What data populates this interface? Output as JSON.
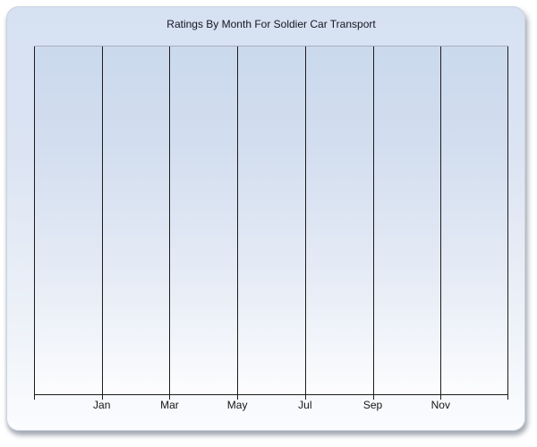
{
  "chart": {
    "title": "Ratings By Month For Soldier Car Transport",
    "x_labels": [
      "Jan",
      "Mar",
      "May",
      "Jul",
      "Sep",
      "Nov"
    ]
  },
  "colors": {
    "title_text": "#15151f",
    "axis_and_gridlines": "#1c1c1c",
    "x_label_text": "#141414",
    "plot_top_border": "#a8afbd",
    "plot_bg_top": "#cbd9ed",
    "plot_bg_bottom": "#fdfdfe",
    "panel_bg_top": "#d6e1f2",
    "panel_bg_bottom": "#fbfcfe",
    "panel_border": "#ccd2dc",
    "page_bg": "#ffffff"
  },
  "chart_data": {
    "type": "line",
    "title": "Ratings By Month For Soldier Car Transport",
    "xlabel": "",
    "ylabel": "",
    "x_tick_labels": [
      "Jan",
      "Mar",
      "May",
      "Jul",
      "Sep",
      "Nov"
    ],
    "series": [],
    "grid": "vertical-gridlines-only",
    "legend": "none"
  }
}
